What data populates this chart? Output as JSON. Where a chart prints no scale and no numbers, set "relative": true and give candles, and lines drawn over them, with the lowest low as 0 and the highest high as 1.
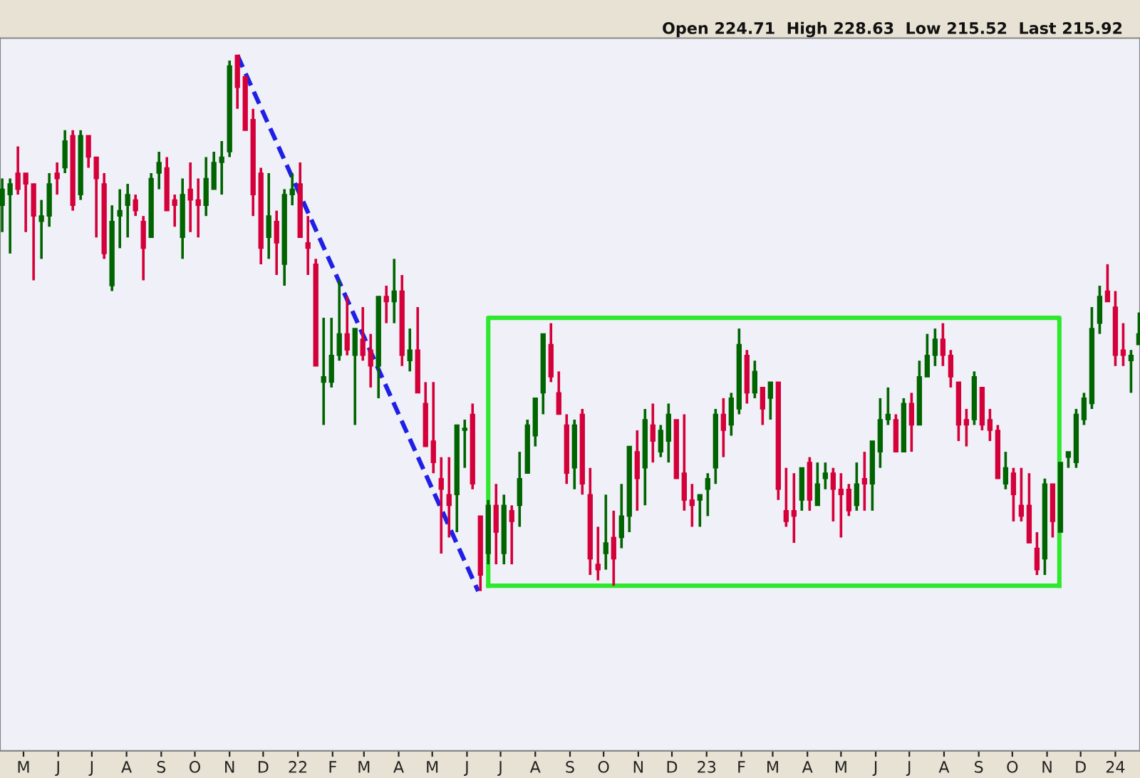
{
  "chart_data": {
    "type": "candlestick",
    "relative": true,
    "annotations": [
      "Open 224.71  High 228.63  Low 215.52  Last 215.92"
    ],
    "colors": [
      "#006400",
      "#006400",
      "#d4003a",
      "#d4003a",
      "#d4003a",
      "#006400",
      "#006400",
      "#d4003a",
      "#006400",
      "#d4003a",
      "#006400",
      "#d4003a",
      "#d4003a",
      "#d4003a",
      "#006400",
      "#006400",
      "#006400",
      "#d4003a",
      "#d4003a",
      "#006400",
      "#006400",
      "#d4003a",
      "#d4003a",
      "#006400",
      "#d4003a",
      "#d4003a",
      "#006400",
      "#006400",
      "#006400",
      "#006400",
      "#d4003a",
      "#d4003a",
      "#d4003a",
      "#d4003a",
      "#006400",
      "#d4003a",
      "#006400",
      "#006400",
      "#d4003a",
      "#d4003a",
      "#d4003a",
      "#006400",
      "#006400",
      "#006400",
      "#d4003a",
      "#006400",
      "#d4003a",
      "#d4003a",
      "#006400",
      "#d4003a",
      "#006400",
      "#d4003a",
      "#006400",
      "#d4003a",
      "#d4003a",
      "#d4003a",
      "#d4003a",
      "#d4003a",
      "#006400",
      "#006400",
      "#d4003a",
      "#d4003a",
      "#006400",
      "#d4003a",
      "#006400",
      "#d4003a",
      "#006400",
      "#006400",
      "#006400",
      "#006400",
      "#d4003a",
      "#d4003a",
      "#d4003a",
      "#006400",
      "#d4003a",
      "#d4003a",
      "#d4003a",
      "#006400",
      "#d4003a",
      "#006400",
      "#006400",
      "#d4003a",
      "#006400",
      "#d4003a",
      "#006400",
      "#006400",
      "#d4003a",
      "#d4003a",
      "#d4003a",
      "#006400",
      "#006400",
      "#006400",
      "#d4003a",
      "#006400",
      "#006400",
      "#d4003a",
      "#006400",
      "#d4003a",
      "#006400",
      "#d4003a",
      "#d4003a",
      "#d4003a",
      "#006400",
      "#d4003a",
      "#006400",
      "#006400",
      "#d4003a",
      "#d4003a",
      "#d4003a",
      "#006400",
      "#d4003a",
      "#006400",
      "#006400",
      "#006400",
      "#d4003a",
      "#006400",
      "#d4003a",
      "#006400",
      "#006400",
      "#006400",
      "#d4003a",
      "#d4003a",
      "#d4003a",
      "#d4003a",
      "#006400",
      "#d4003a",
      "#d4003a",
      "#d4003a",
      "#006400",
      "#d4003a",
      "#d4003a",
      "#d4003a",
      "#d4003a",
      "#006400",
      "#d4003a",
      "#006400",
      "#006400",
      "#006400",
      "#006400",
      "#006400",
      "#006400",
      "#d4003a",
      "#d4003a",
      "#d4003a",
      "#006400",
      "#006400"
    ],
    "xlim": [
      "2021-04-10",
      "2024-01-23"
    ],
    "xticks": [
      {
        "value": "2021-05-01",
        "label": "M"
      },
      {
        "value": "2021-06-01",
        "label": "J"
      },
      {
        "value": "2021-07-01",
        "label": "J"
      },
      {
        "value": "2021-08-01",
        "label": "A"
      },
      {
        "value": "2021-09-01",
        "label": "S"
      },
      {
        "value": "2021-10-01",
        "label": "O"
      },
      {
        "value": "2021-11-01",
        "label": "N"
      },
      {
        "value": "2021-12-01",
        "label": "D"
      },
      {
        "value": "2022-01-01",
        "label": "22"
      },
      {
        "value": "2022-02-01",
        "label": "F"
      },
      {
        "value": "2022-03-01",
        "label": "M"
      },
      {
        "value": "2022-04-01",
        "label": "A"
      },
      {
        "value": "2022-05-01",
        "label": "M"
      },
      {
        "value": "2022-06-01",
        "label": "J"
      },
      {
        "value": "2022-07-01",
        "label": "J"
      },
      {
        "value": "2022-08-01",
        "label": "A"
      },
      {
        "value": "2022-09-01",
        "label": "S"
      },
      {
        "value": "2022-10-01",
        "label": "O"
      },
      {
        "value": "2022-11-01",
        "label": "N"
      },
      {
        "value": "2022-12-01",
        "label": "D"
      },
      {
        "value": "2023-01-01",
        "label": "23"
      },
      {
        "value": "2023-02-01",
        "label": "F"
      },
      {
        "value": "2023-03-01",
        "label": "M"
      },
      {
        "value": "2023-04-01",
        "label": "A"
      },
      {
        "value": "2023-05-01",
        "label": "M"
      },
      {
        "value": "2023-06-01",
        "label": "J"
      },
      {
        "value": "2023-07-01",
        "label": "J"
      },
      {
        "value": "2023-08-01",
        "label": "A"
      },
      {
        "value": "2023-09-01",
        "label": "S"
      },
      {
        "value": "2023-10-01",
        "label": "O"
      },
      {
        "value": "2023-11-01",
        "label": "N"
      },
      {
        "value": "2023-12-01",
        "label": "D"
      },
      {
        "value": "2024-01-01",
        "label": "24"
      }
    ],
    "x": [
      "2021-04-12",
      "2021-04-19",
      "2021-04-26",
      "2021-05-03",
      "2021-05-10",
      "2021-05-17",
      "2021-05-24",
      "2021-05-31",
      "2021-06-07",
      "2021-06-14",
      "2021-06-21",
      "2021-06-28",
      "2021-07-05",
      "2021-07-12",
      "2021-07-19",
      "2021-07-26",
      "2021-08-02",
      "2021-08-09",
      "2021-08-16",
      "2021-08-23",
      "2021-08-30",
      "2021-09-06",
      "2021-09-13",
      "2021-09-20",
      "2021-09-27",
      "2021-10-04",
      "2021-10-11",
      "2021-10-18",
      "2021-10-25",
      "2021-11-01",
      "2021-11-08",
      "2021-11-15",
      "2021-11-22",
      "2021-11-29",
      "2021-12-06",
      "2021-12-13",
      "2021-12-20",
      "2021-12-27",
      "2022-01-03",
      "2022-01-10",
      "2022-01-17",
      "2022-01-24",
      "2022-01-31",
      "2022-02-07",
      "2022-02-14",
      "2022-02-21",
      "2022-02-28",
      "2022-03-07",
      "2022-03-14",
      "2022-03-21",
      "2022-03-28",
      "2022-04-04",
      "2022-04-11",
      "2022-04-18",
      "2022-04-25",
      "2022-05-02",
      "2022-05-09",
      "2022-05-16",
      "2022-05-23",
      "2022-05-30",
      "2022-06-06",
      "2022-06-13",
      "2022-06-20",
      "2022-06-27",
      "2022-07-04",
      "2022-07-11",
      "2022-07-18",
      "2022-07-25",
      "2022-08-01",
      "2022-08-08",
      "2022-08-15",
      "2022-08-22",
      "2022-08-29",
      "2022-09-05",
      "2022-09-12",
      "2022-09-19",
      "2022-09-26",
      "2022-10-03",
      "2022-10-10",
      "2022-10-17",
      "2022-10-24",
      "2022-10-31",
      "2022-11-07",
      "2022-11-14",
      "2022-11-21",
      "2022-11-28",
      "2022-12-05",
      "2022-12-12",
      "2022-12-19",
      "2022-12-26",
      "2023-01-02",
      "2023-01-09",
      "2023-01-16",
      "2023-01-23",
      "2023-01-30",
      "2023-02-06",
      "2023-02-13",
      "2023-02-20",
      "2023-02-27",
      "2023-03-06",
      "2023-03-13",
      "2023-03-20",
      "2023-03-27",
      "2023-04-03",
      "2023-04-10",
      "2023-04-17",
      "2023-04-24",
      "2023-05-01",
      "2023-05-08",
      "2023-05-15",
      "2023-05-22",
      "2023-05-29",
      "2023-06-05",
      "2023-06-12",
      "2023-06-19",
      "2023-06-26",
      "2023-07-03",
      "2023-07-10",
      "2023-07-17",
      "2023-07-24",
      "2023-07-31",
      "2023-08-07",
      "2023-08-14",
      "2023-08-21",
      "2023-08-28",
      "2023-09-04",
      "2023-09-11",
      "2023-09-18",
      "2023-09-25",
      "2023-10-02",
      "2023-10-09",
      "2023-10-16",
      "2023-10-23",
      "2023-10-30",
      "2023-11-06",
      "2023-11-13",
      "2023-11-20",
      "2023-11-27",
      "2023-12-04",
      "2023-12-11",
      "2023-12-18",
      "2023-12-25",
      "2024-01-01",
      "2024-01-08",
      "2024-01-15",
      "2024-01-22"
    ],
    "ohlc": [
      [
        0.72,
        0.77,
        0.67,
        0.75
      ],
      [
        0.74,
        0.77,
        0.63,
        0.76
      ],
      [
        0.78,
        0.83,
        0.74,
        0.75
      ],
      [
        0.78,
        0.78,
        0.67,
        0.76
      ],
      [
        0.76,
        0.76,
        0.58,
        0.7
      ],
      [
        0.69,
        0.73,
        0.62,
        0.7
      ],
      [
        0.7,
        0.78,
        0.68,
        0.76
      ],
      [
        0.78,
        0.8,
        0.74,
        0.77
      ],
      [
        0.79,
        0.86,
        0.78,
        0.84
      ],
      [
        0.85,
        0.86,
        0.71,
        0.72
      ],
      [
        0.74,
        0.86,
        0.73,
        0.85
      ],
      [
        0.85,
        0.85,
        0.79,
        0.81
      ],
      [
        0.81,
        0.81,
        0.66,
        0.77
      ],
      [
        0.76,
        0.78,
        0.62,
        0.63
      ],
      [
        0.57,
        0.72,
        0.56,
        0.69
      ],
      [
        0.7,
        0.75,
        0.64,
        0.71
      ],
      [
        0.72,
        0.76,
        0.66,
        0.74
      ],
      [
        0.73,
        0.74,
        0.7,
        0.71
      ],
      [
        0.69,
        0.7,
        0.58,
        0.64
      ],
      [
        0.66,
        0.78,
        0.66,
        0.77
      ],
      [
        0.78,
        0.82,
        0.75,
        0.8
      ],
      [
        0.79,
        0.81,
        0.71,
        0.71
      ],
      [
        0.73,
        0.74,
        0.68,
        0.72
      ],
      [
        0.66,
        0.77,
        0.62,
        0.74
      ],
      [
        0.75,
        0.8,
        0.67,
        0.73
      ],
      [
        0.73,
        0.77,
        0.66,
        0.72
      ],
      [
        0.72,
        0.81,
        0.7,
        0.77
      ],
      [
        0.75,
        0.82,
        0.75,
        0.8
      ],
      [
        0.8,
        0.84,
        0.74,
        0.81
      ],
      [
        0.82,
        0.99,
        0.81,
        0.98
      ],
      [
        1.0,
        1.0,
        0.9,
        0.94
      ],
      [
        0.96,
        0.96,
        0.86,
        0.86
      ],
      [
        0.88,
        0.9,
        0.7,
        0.74
      ],
      [
        0.78,
        0.79,
        0.61,
        0.64
      ],
      [
        0.66,
        0.78,
        0.62,
        0.7
      ],
      [
        0.69,
        0.71,
        0.59,
        0.65
      ],
      [
        0.61,
        0.75,
        0.57,
        0.74
      ],
      [
        0.74,
        0.78,
        0.72,
        0.75
      ],
      [
        0.76,
        0.8,
        0.66,
        0.66
      ],
      [
        0.65,
        0.7,
        0.59,
        0.64
      ],
      [
        0.61,
        0.62,
        0.42,
        0.42
      ],
      [
        0.39,
        0.51,
        0.31,
        0.4
      ],
      [
        0.39,
        0.51,
        0.38,
        0.44
      ],
      [
        0.44,
        0.58,
        0.43,
        0.48
      ],
      [
        0.48,
        0.55,
        0.44,
        0.45
      ],
      [
        0.44,
        0.49,
        0.31,
        0.49
      ],
      [
        0.47,
        0.53,
        0.43,
        0.44
      ],
      [
        0.45,
        0.48,
        0.38,
        0.42
      ],
      [
        0.42,
        0.55,
        0.36,
        0.55
      ],
      [
        0.55,
        0.57,
        0.5,
        0.54
      ],
      [
        0.54,
        0.62,
        0.5,
        0.56
      ],
      [
        0.56,
        0.59,
        0.42,
        0.44
      ],
      [
        0.43,
        0.49,
        0.41,
        0.45
      ],
      [
        0.45,
        0.53,
        0.37,
        0.37
      ],
      [
        0.35,
        0.39,
        0.27,
        0.27
      ],
      [
        0.28,
        0.39,
        0.22,
        0.24
      ],
      [
        0.21,
        0.25,
        0.07,
        0.19
      ],
      [
        0.18,
        0.25,
        0.1,
        0.16
      ],
      [
        0.18,
        0.31,
        0.11,
        0.31
      ],
      [
        0.3,
        0.32,
        0.23,
        0.3
      ],
      [
        0.33,
        0.35,
        0.19,
        0.2
      ],
      [
        0.14,
        0.14,
        0.0,
        0.03
      ],
      [
        0.07,
        0.17,
        0.05,
        0.16
      ],
      [
        0.16,
        0.2,
        0.05,
        0.11
      ],
      [
        0.07,
        0.18,
        0.05,
        0.16
      ],
      [
        0.15,
        0.16,
        0.05,
        0.13
      ],
      [
        0.16,
        0.26,
        0.12,
        0.21
      ],
      [
        0.22,
        0.32,
        0.22,
        0.31
      ],
      [
        0.29,
        0.36,
        0.27,
        0.36
      ],
      [
        0.37,
        0.48,
        0.33,
        0.48
      ],
      [
        0.46,
        0.5,
        0.39,
        0.4
      ],
      [
        0.37,
        0.41,
        0.33,
        0.33
      ],
      [
        0.31,
        0.33,
        0.2,
        0.22
      ],
      [
        0.23,
        0.32,
        0.19,
        0.31
      ],
      [
        0.33,
        0.34,
        0.18,
        0.2
      ],
      [
        0.18,
        0.23,
        0.03,
        0.06
      ],
      [
        0.05,
        0.12,
        0.02,
        0.04
      ],
      [
        0.07,
        0.18,
        0.04,
        0.09
      ],
      [
        0.1,
        0.15,
        0.01,
        0.06
      ],
      [
        0.1,
        0.2,
        0.08,
        0.14
      ],
      [
        0.14,
        0.27,
        0.11,
        0.27
      ],
      [
        0.26,
        0.3,
        0.15,
        0.21
      ],
      [
        0.23,
        0.34,
        0.16,
        0.32
      ],
      [
        0.31,
        0.35,
        0.24,
        0.28
      ],
      [
        0.26,
        0.31,
        0.25,
        0.3
      ],
      [
        0.28,
        0.35,
        0.24,
        0.33
      ],
      [
        0.32,
        0.32,
        0.21,
        0.21
      ],
      [
        0.22,
        0.33,
        0.15,
        0.17
      ],
      [
        0.17,
        0.2,
        0.12,
        0.16
      ],
      [
        0.17,
        0.18,
        0.12,
        0.18
      ],
      [
        0.19,
        0.22,
        0.14,
        0.21
      ],
      [
        0.23,
        0.34,
        0.2,
        0.33
      ],
      [
        0.33,
        0.36,
        0.25,
        0.3
      ],
      [
        0.31,
        0.37,
        0.29,
        0.36
      ],
      [
        0.34,
        0.49,
        0.33,
        0.46
      ],
      [
        0.44,
        0.45,
        0.35,
        0.37
      ],
      [
        0.37,
        0.43,
        0.36,
        0.41
      ],
      [
        0.38,
        0.38,
        0.31,
        0.34
      ],
      [
        0.36,
        0.39,
        0.32,
        0.39
      ],
      [
        0.39,
        0.39,
        0.17,
        0.19
      ],
      [
        0.15,
        0.23,
        0.12,
        0.13
      ],
      [
        0.15,
        0.22,
        0.09,
        0.14
      ],
      [
        0.17,
        0.23,
        0.15,
        0.23
      ],
      [
        0.24,
        0.25,
        0.15,
        0.17
      ],
      [
        0.16,
        0.24,
        0.16,
        0.2
      ],
      [
        0.21,
        0.24,
        0.19,
        0.22
      ],
      [
        0.22,
        0.23,
        0.13,
        0.19
      ],
      [
        0.19,
        0.22,
        0.1,
        0.18
      ],
      [
        0.19,
        0.2,
        0.14,
        0.15
      ],
      [
        0.16,
        0.24,
        0.15,
        0.2
      ],
      [
        0.21,
        0.26,
        0.15,
        0.2
      ],
      [
        0.2,
        0.28,
        0.15,
        0.28
      ],
      [
        0.26,
        0.36,
        0.23,
        0.32
      ],
      [
        0.32,
        0.38,
        0.31,
        0.33
      ],
      [
        0.32,
        0.33,
        0.26,
        0.26
      ],
      [
        0.26,
        0.36,
        0.26,
        0.35
      ],
      [
        0.35,
        0.37,
        0.26,
        0.31
      ],
      [
        0.31,
        0.43,
        0.31,
        0.4
      ],
      [
        0.4,
        0.48,
        0.4,
        0.44
      ],
      [
        0.44,
        0.49,
        0.42,
        0.47
      ],
      [
        0.47,
        0.5,
        0.42,
        0.44
      ],
      [
        0.44,
        0.45,
        0.38,
        0.4
      ],
      [
        0.39,
        0.39,
        0.28,
        0.31
      ],
      [
        0.32,
        0.34,
        0.27,
        0.31
      ],
      [
        0.32,
        0.41,
        0.31,
        0.4
      ],
      [
        0.38,
        0.38,
        0.3,
        0.31
      ],
      [
        0.32,
        0.34,
        0.28,
        0.3
      ],
      [
        0.3,
        0.31,
        0.21,
        0.21
      ],
      [
        0.2,
        0.26,
        0.19,
        0.23
      ],
      [
        0.22,
        0.23,
        0.13,
        0.18
      ],
      [
        0.16,
        0.23,
        0.13,
        0.14
      ],
      [
        0.16,
        0.22,
        0.09,
        0.09
      ],
      [
        0.08,
        0.11,
        0.03,
        0.04
      ],
      [
        0.06,
        0.21,
        0.03,
        0.2
      ],
      [
        0.2,
        0.2,
        0.1,
        0.13
      ],
      [
        0.11,
        0.24,
        0.11,
        0.24
      ],
      [
        0.25,
        0.26,
        0.23,
        0.26
      ],
      [
        0.24,
        0.34,
        0.23,
        0.33
      ],
      [
        0.32,
        0.37,
        0.31,
        0.36
      ],
      [
        0.35,
        0.53,
        0.34,
        0.49
      ],
      [
        0.5,
        0.57,
        0.48,
        0.55
      ],
      [
        0.56,
        0.61,
        0.54,
        0.54
      ],
      [
        0.53,
        0.56,
        0.42,
        0.44
      ],
      [
        0.45,
        0.5,
        0.42,
        0.44
      ],
      [
        0.43,
        0.45,
        0.37,
        0.44
      ],
      [
        0.46,
        0.52,
        0.46,
        0.48
      ]
    ],
    "series": [
      {
        "type": "line",
        "color": "#1f1fe6",
        "line_style": "dashed",
        "x": [
          "2021-11-08",
          "2022-06-11"
        ],
        "values": [
          1.0,
          0.0
        ]
      },
      {
        "type": "line",
        "color": "#2ee82e",
        "line_style": "solid",
        "x": [
          "2022-06-20",
          "2022-06-20",
          "2023-11-12",
          "2023-11-12"
        ],
        "values": [
          0.01,
          0.51,
          0.51,
          0.01
        ]
      },
      {
        "type": "line",
        "color": "#2ee82e",
        "line_style": "solid",
        "x": [
          "2022-06-20",
          "2023-11-12"
        ],
        "values": [
          0.01,
          0.01
        ]
      }
    ]
  }
}
